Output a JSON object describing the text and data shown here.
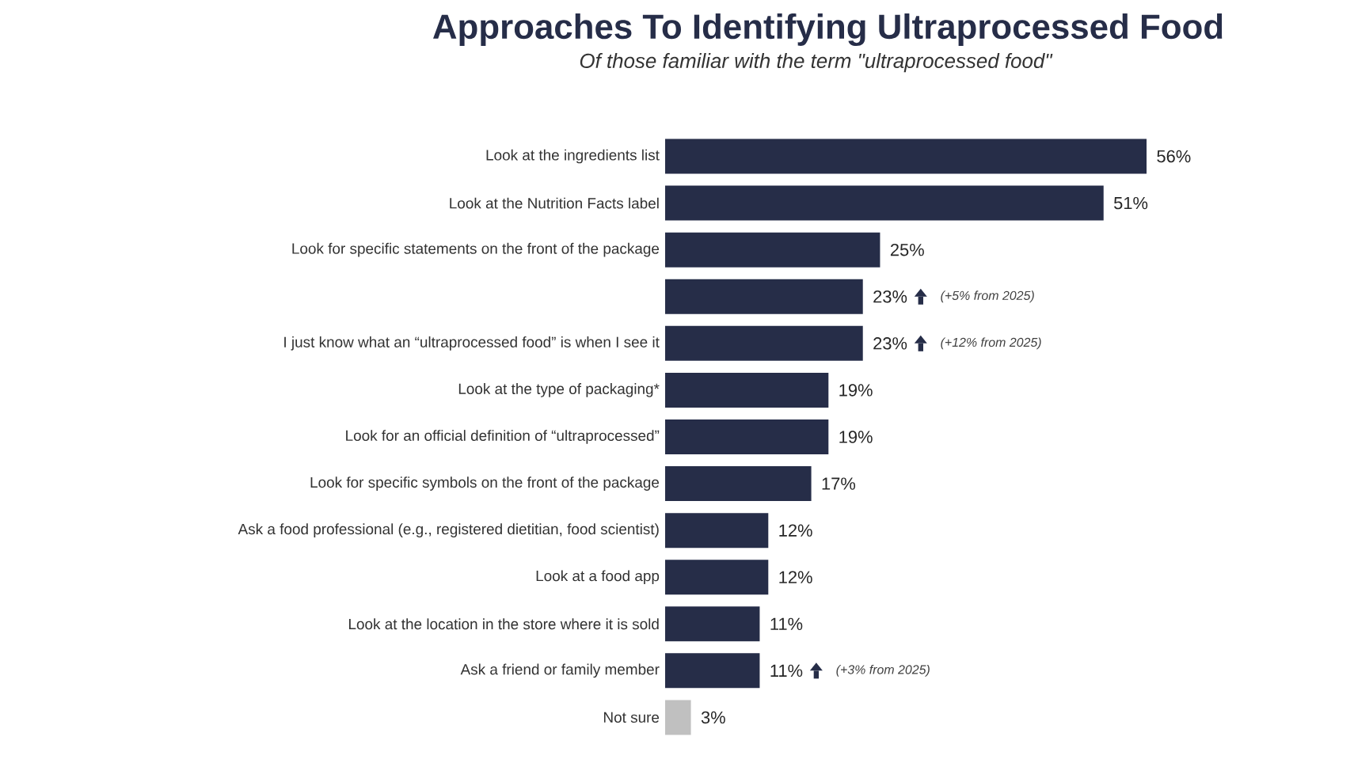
{
  "chart_data": {
    "type": "bar",
    "orientation": "horizontal",
    "title": "Approaches To Identifying Ultraprocessed Food",
    "subtitle": "Of those familiar with the term \"ultraprocessed food\"",
    "categories": [
      "Look at the ingredients list",
      "Look at the Nutrition Facts label",
      "Look for specific statements on the front of the package",
      null,
      "I just know what an “ultraprocessed food” is when I see it",
      "Look at the type of packaging*",
      "Look for an official definition of “ultraprocessed”",
      "Look for specific symbols on the front of the package",
      "Ask a food professional (e.g., registered dietitian, food scientist)",
      "Look at a food app",
      "Look at the location in the store where it is sold",
      "Ask a friend or family member",
      "Not sure"
    ],
    "values": [
      56,
      51,
      25,
      23,
      23,
      19,
      19,
      17,
      12,
      12,
      11,
      11,
      3
    ],
    "value_labels": [
      "56%",
      "51%",
      "25%",
      "23%",
      "23%",
      "19%",
      "19%",
      "17%",
      "12%",
      "12%",
      "11%",
      "11%",
      "3%"
    ],
    "colors": [
      "#262d48",
      "#262d48",
      "#262d48",
      "#262d48",
      "#262d48",
      "#262d48",
      "#262d48",
      "#262d48",
      "#262d48",
      "#262d48",
      "#262d48",
      "#262d48",
      "#c0c0c0"
    ],
    "annotations": [
      "(+5% from 2025)",
      "(+12% from 2025)",
      "(+3% from 2025)"
    ]
  }
}
